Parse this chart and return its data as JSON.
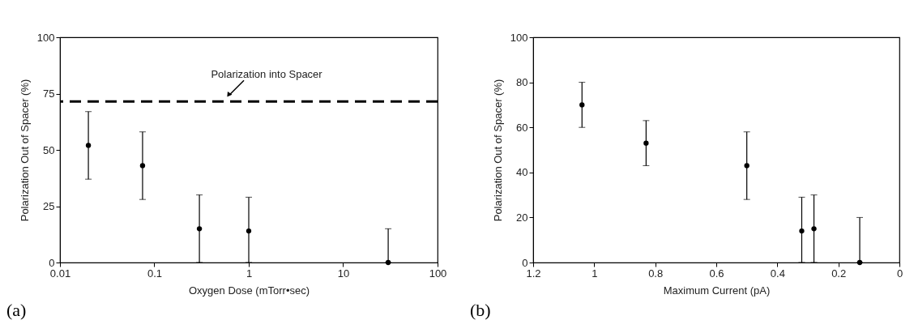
{
  "chart_data": [
    {
      "type": "scatter",
      "xlabel": "Oxygen Dose (mTorr•sec)",
      "ylabel": "Polarization Out of Spacer (%)",
      "log": "x",
      "marker": "circle",
      "grid": false,
      "x": [
        0.02,
        0.075,
        0.3,
        1,
        30
      ],
      "series": [
        {
          "color": "#000000",
          "values": [
            52,
            43,
            15,
            14,
            0
          ],
          "errors": [
            [
              37,
              67
            ],
            [
              28,
              58
            ],
            [
              0,
              30
            ],
            [
              0,
              29
            ],
            [
              0,
              15
            ]
          ]
        }
      ],
      "xlim": [
        0.01,
        100
      ],
      "xticks": [
        0.01,
        0.1,
        1,
        10,
        100
      ],
      "ylim": [
        0,
        100
      ],
      "yticks": [
        0,
        25,
        50,
        75,
        100
      ],
      "ref_lines": [
        {
          "axis": "y",
          "value": 71.5,
          "label": "Polarization into Spacer",
          "line_style": "dashed",
          "color": "#000000"
        }
      ],
      "annotations": [
        "(a)"
      ]
    },
    {
      "type": "scatter",
      "xlabel": "Maximum Current (pA)",
      "ylabel": "Polarization Out of Spacer (%)",
      "marker": "circle",
      "grid": false,
      "x": [
        1.04,
        0.83,
        0.5,
        0.32,
        0.28,
        0.13
      ],
      "series": [
        {
          "color": "#000000",
          "values": [
            70,
            53,
            43,
            14,
            15,
            0
          ],
          "errors": [
            [
              60,
              80
            ],
            [
              43,
              63
            ],
            [
              28,
              58
            ],
            [
              0,
              29
            ],
            [
              0,
              30
            ],
            [
              0,
              20
            ]
          ]
        }
      ],
      "xlim": [
        1.2,
        0
      ],
      "xticks": [
        1.2,
        1,
        0.8,
        0.6,
        0.4,
        0.2,
        0
      ],
      "ylim": [
        0,
        100
      ],
      "yticks": [
        0,
        20,
        40,
        60,
        80,
        100
      ],
      "annotations": [
        "(b)"
      ]
    }
  ]
}
